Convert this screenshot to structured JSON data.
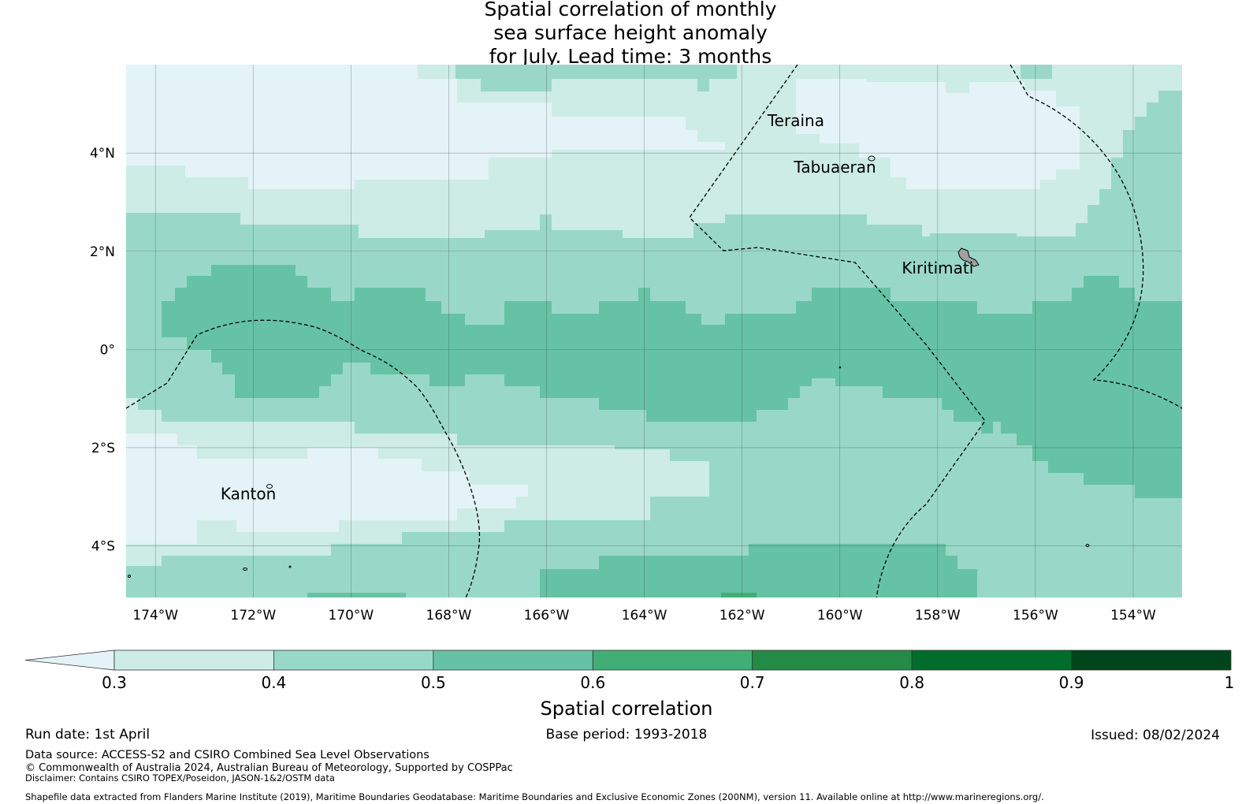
{
  "title": {
    "line1": "Spatial correlation of monthly",
    "line2": "sea surface height anomaly",
    "line3": "for July. Lead time: 3 months"
  },
  "map": {
    "lon_range": [
      -174.6,
      -153.0
    ],
    "lat_range": [
      -5.05,
      5.8
    ],
    "lon_ticks": [
      {
        "value": -174,
        "label": "174°W"
      },
      {
        "value": -172,
        "label": "172°W"
      },
      {
        "value": -170,
        "label": "170°W"
      },
      {
        "value": -168,
        "label": "168°W"
      },
      {
        "value": -166,
        "label": "166°W"
      },
      {
        "value": -164,
        "label": "164°W"
      },
      {
        "value": -162,
        "label": "162°W"
      },
      {
        "value": -160,
        "label": "160°W"
      },
      {
        "value": -158,
        "label": "158°W"
      },
      {
        "value": -156,
        "label": "156°W"
      },
      {
        "value": -154,
        "label": "154°W"
      }
    ],
    "lat_ticks": [
      {
        "value": 4,
        "label": "4°N"
      },
      {
        "value": 2,
        "label": "2°N"
      },
      {
        "value": 0,
        "label": "0°"
      },
      {
        "value": -2,
        "label": "2°S"
      },
      {
        "value": -4,
        "label": "4°S"
      }
    ],
    "places": [
      {
        "name": "Teraina",
        "lon": -160.9,
        "lat": 4.55
      },
      {
        "name": "Tabuaeran",
        "lon": -160.1,
        "lat": 3.6
      },
      {
        "name": "Kiritimati",
        "lon": -158.0,
        "lat": 1.55
      },
      {
        "name": "Kanton",
        "lon": -172.1,
        "lat": -3.05
      }
    ],
    "correlation_bands": [
      {
        "class": "0.3-0.4",
        "lat_from": 5.8,
        "lat_to": 2.75,
        "note": "mixed 0.3-0.4 region north"
      },
      {
        "class": "0.4-0.5",
        "lat_from": 2.75,
        "lat_to": 1.5
      },
      {
        "class": "0.5-0.6",
        "lat_from": 1.5,
        "lat_to": -1.0
      },
      {
        "class": "0.4-0.5",
        "lat_from": -1.0,
        "lat_to": -1.75
      },
      {
        "class": "0.3-0.4",
        "lat_from": -1.75,
        "lat_to": -4.3
      },
      {
        "class": "0.4-0.5",
        "lat_from": -4.3,
        "lat_to": -5.05
      }
    ]
  },
  "colorbar": {
    "colors": [
      "#e4f3f8",
      "#ccece5",
      "#99d8c9",
      "#66c2a4",
      "#41ae76",
      "#238b45",
      "#006d2c",
      "#00441b"
    ],
    "ticks": [
      "0.3",
      "0.4",
      "0.5",
      "0.6",
      "0.7",
      "0.8",
      "0.9",
      "1"
    ],
    "label": "Spatial correlation"
  },
  "footer": {
    "run_date": "Run date: 1st April",
    "base_period": "Base period: 1993-2018",
    "issued": "Issued: 08/02/2024",
    "data_source": "Data source: ACCESS-S2 and CSIRO Combined Sea Level Observations",
    "copyright": "© Commonwealth of Australia 2024, Australian Bureau of Meteorology, Supported by COSPPac",
    "disclaimer": "Disclaimer: Contains CSIRO TOPEX/Poseidon, JASON-1&2/OSTM data",
    "shapefile": "Shapefile data extracted from Flanders Marine Institute (2019), Maritime Boundaries Geodatabase: Maritime Boundaries and Exclusive Economic Zones (200NM), version 11. Available online at http://www.marineregions.org/."
  }
}
